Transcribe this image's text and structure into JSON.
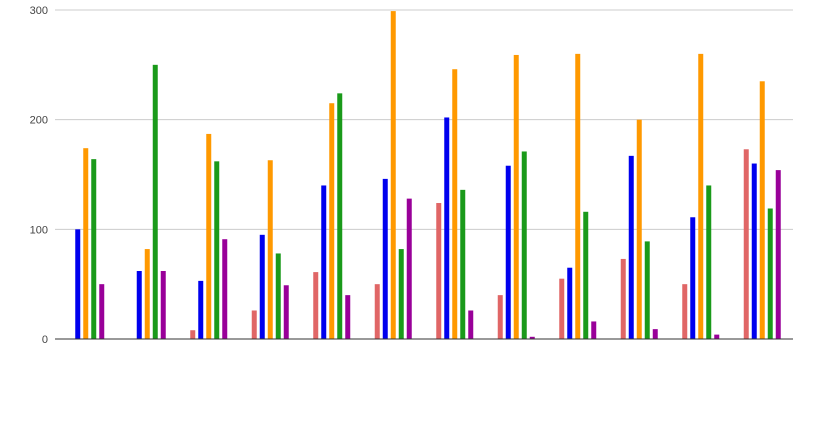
{
  "chart_data": {
    "type": "bar",
    "categories": [
      "",
      "",
      "",
      "",
      "",
      "",
      "",
      "",
      "",
      "",
      "",
      ""
    ],
    "series": [
      {
        "color": "#e06666",
        "values": [
          0,
          0,
          8,
          26,
          61,
          50,
          124,
          40,
          55,
          73,
          50,
          173
        ]
      },
      {
        "color": "#0000ee",
        "values": [
          100,
          62,
          53,
          95,
          140,
          146,
          202,
          158,
          65,
          167,
          111,
          160
        ]
      },
      {
        "color": "#ff9900",
        "values": [
          174,
          82,
          187,
          163,
          215,
          299,
          246,
          259,
          260,
          200,
          260,
          235
        ]
      },
      {
        "color": "#1a9a1a",
        "values": [
          164,
          250,
          162,
          78,
          224,
          82,
          136,
          171,
          116,
          89,
          140,
          119
        ]
      },
      {
        "color": "#990099",
        "values": [
          50,
          62,
          91,
          49,
          40,
          128,
          26,
          2,
          16,
          9,
          4,
          154
        ]
      }
    ],
    "ylim": [
      0,
      300
    ],
    "yticks": [
      "0",
      "100",
      "200",
      "300"
    ],
    "grid": true,
    "legend": "none"
  }
}
